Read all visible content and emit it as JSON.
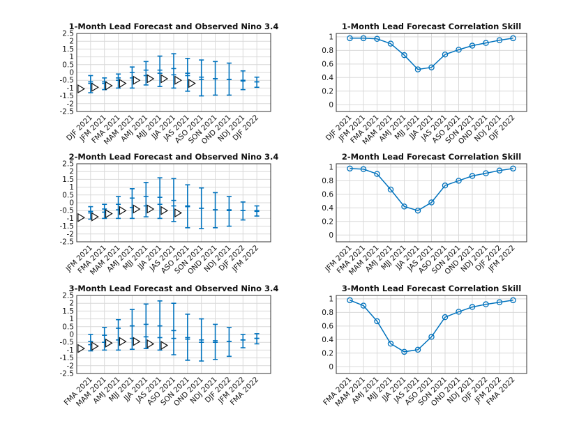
{
  "colors": {
    "line": "#0072bd",
    "obs": "#111111",
    "grid": "#d9d9d9"
  },
  "chart_data": [
    {
      "type": "errorbar",
      "title": "1-Month Lead Forecast and Observed Nino 3.4",
      "categories": [
        "DJF 2021",
        "JFM 2021",
        "FMA 2021",
        "MAM 2021",
        "AMJ 2021",
        "MJJ 2021",
        "JJA 2021",
        "JAS 2021",
        "ASO 2021",
        "SON 2021",
        "OND 2021",
        "NDJ 2021",
        "DJF 2022"
      ],
      "yticks": [
        "2.5",
        "2",
        "1.5",
        "1",
        "0.5",
        "0",
        "-0.5",
        "-1",
        "-1.5",
        "-2",
        "-2.5"
      ],
      "ylim": [
        -2.5,
        2.5
      ],
      "grid": true,
      "forecast": [
        {
          "mean": -0.7,
          "tick": -0.6,
          "low": -1.3,
          "high": -0.2
        },
        {
          "mean": -0.7,
          "tick": -0.6,
          "low": -1.1,
          "high": -0.35
        },
        {
          "mean": -0.5,
          "tick": -0.35,
          "low": -1.0,
          "high": -0.1
        },
        {
          "mean": -0.35,
          "tick": 0.0,
          "low": -1.0,
          "high": 0.35
        },
        {
          "mean": -0.2,
          "tick": 0.15,
          "low": -0.8,
          "high": 0.7
        },
        {
          "mean": -0.05,
          "tick": 0.15,
          "low": -0.9,
          "high": 1.05
        },
        {
          "mean": -0.15,
          "tick": 0.25,
          "low": -1.0,
          "high": 1.2
        },
        {
          "mean": -0.2,
          "tick": -0.05,
          "low": -1.2,
          "high": 0.9
        },
        {
          "mean": -0.3,
          "tick": -0.45,
          "low": -1.5,
          "high": 0.8
        },
        {
          "mean": -0.4,
          "tick": -0.4,
          "low": -1.45,
          "high": 0.7
        },
        {
          "mean": -0.45,
          "tick": -0.45,
          "low": -1.45,
          "high": 0.6
        },
        {
          "mean": -0.5,
          "tick": -0.55,
          "low": -1.1,
          "high": 0.1
        },
        {
          "mean": -0.6,
          "tick": -0.6,
          "low": -0.95,
          "high": -0.3
        }
      ],
      "observed": [
        -1.05,
        -0.95,
        -0.85,
        -0.7,
        -0.5,
        -0.4,
        -0.4,
        -0.5,
        -0.7,
        null,
        null,
        null,
        null
      ]
    },
    {
      "type": "line",
      "title": "1-Month Lead Forecast Correlation Skill",
      "categories": [
        "DJF 2021",
        "JFM 2021",
        "FMA 2021",
        "MAM 2021",
        "AMJ 2021",
        "MJJ 2021",
        "JJA 2021",
        "JAS 2021",
        "ASO 2021",
        "SON 2021",
        "OND 2021",
        "NDJ 2021",
        "DJF 2022"
      ],
      "yticks": [
        "1",
        "0.8",
        "0.6",
        "0.4",
        "0.2",
        "0"
      ],
      "ylim": [
        -0.1,
        1.05
      ],
      "grid": true,
      "values": [
        0.98,
        0.98,
        0.97,
        0.9,
        0.73,
        0.52,
        0.55,
        0.74,
        0.81,
        0.87,
        0.91,
        0.95,
        0.98
      ]
    },
    {
      "type": "errorbar",
      "title": "2-Month Lead Forecast and Observed Nino 3.4",
      "categories": [
        "JFM 2021",
        "FMA 2021",
        "MAM 2021",
        "AMJ 2021",
        "MJJ 2021",
        "JJA 2021",
        "JAS 2021",
        "ASO 2021",
        "SON 2021",
        "OND 2021",
        "NDJ 2021",
        "DJF 2022",
        "JFM 2022"
      ],
      "yticks": [
        "2.5",
        "2",
        "1.5",
        "1",
        "0.5",
        "0",
        "-0.5",
        "-1",
        "-1.5",
        "-2",
        "-2.5"
      ],
      "ylim": [
        -2.5,
        2.5
      ],
      "grid": true,
      "forecast": [
        {
          "mean": -0.65,
          "tick": -0.55,
          "low": -1.05,
          "high": -0.25
        },
        {
          "mean": -0.6,
          "tick": -0.4,
          "low": -1.0,
          "high": -0.1
        },
        {
          "mean": -0.45,
          "tick": -0.1,
          "low": -1.0,
          "high": 0.4
        },
        {
          "mean": -0.3,
          "tick": 0.3,
          "low": -1.0,
          "high": 0.9
        },
        {
          "mean": -0.2,
          "tick": 0.4,
          "low": -0.9,
          "high": 1.3
        },
        {
          "mean": -0.1,
          "tick": 0.35,
          "low": -1.0,
          "high": 1.6
        },
        {
          "mean": -0.2,
          "tick": 0.15,
          "low": -1.2,
          "high": 1.55
        },
        {
          "mean": -0.25,
          "tick": -0.2,
          "low": -1.6,
          "high": 1.15
        },
        {
          "mean": -0.35,
          "tick": -0.35,
          "low": -1.65,
          "high": 0.95
        },
        {
          "mean": -0.45,
          "tick": -0.45,
          "low": -1.6,
          "high": 0.65
        },
        {
          "mean": -0.45,
          "tick": -0.5,
          "low": -1.5,
          "high": 0.4
        },
        {
          "mean": -0.5,
          "tick": -0.5,
          "low": -1.1,
          "high": 0.05
        },
        {
          "mean": -0.55,
          "tick": -0.5,
          "low": -0.85,
          "high": -0.2
        }
      ],
      "observed": [
        -0.95,
        -0.9,
        -0.7,
        -0.5,
        -0.4,
        -0.4,
        -0.5,
        -0.65,
        null,
        null,
        null,
        null,
        null
      ]
    },
    {
      "type": "line",
      "title": "2-Month Lead Forecast Correlation Skill",
      "categories": [
        "JFM 2021",
        "FMA 2021",
        "MAM 2021",
        "AMJ 2021",
        "MJJ 2021",
        "JJA 2021",
        "JAS 2021",
        "ASO 2021",
        "SON 2021",
        "OND 2021",
        "NDJ 2021",
        "DJF 2022",
        "JFM 2022"
      ],
      "yticks": [
        "1",
        "0.8",
        "0.6",
        "0.4",
        "0.2",
        "0"
      ],
      "ylim": [
        -0.1,
        1.05
      ],
      "grid": true,
      "values": [
        0.98,
        0.97,
        0.9,
        0.67,
        0.42,
        0.36,
        0.48,
        0.73,
        0.8,
        0.87,
        0.91,
        0.95,
        0.98
      ]
    },
    {
      "type": "errorbar",
      "title": "3-Month Lead Forecast and Observed Nino 3.4",
      "categories": [
        "FMA 2021",
        "MAM 2021",
        "AMJ 2021",
        "MJJ 2021",
        "JJA 2021",
        "JAS 2021",
        "ASO 2021",
        "SON 2021",
        "OND 2021",
        "NDJ 2021",
        "DJF 2022",
        "JFM 2022",
        "FMA 2022"
      ],
      "yticks": [
        "2.5",
        "2",
        "1.5",
        "1",
        "0.5",
        "0",
        "-0.5",
        "-1",
        "-1.5",
        "-2",
        "-2.5"
      ],
      "ylim": [
        -2.5,
        2.5
      ],
      "grid": true,
      "forecast": [
        {
          "mean": -0.65,
          "tick": -0.45,
          "low": -1.05,
          "high": 0.0
        },
        {
          "mean": -0.5,
          "tick": -0.05,
          "low": -1.0,
          "high": 0.45
        },
        {
          "mean": -0.35,
          "tick": 0.4,
          "low": -1.0,
          "high": 0.95
        },
        {
          "mean": -0.25,
          "tick": 0.55,
          "low": -0.95,
          "high": 1.6
        },
        {
          "mean": -0.15,
          "tick": 0.65,
          "low": -0.9,
          "high": 1.95
        },
        {
          "mean": -0.2,
          "tick": 0.55,
          "low": -1.0,
          "high": 2.15
        },
        {
          "mean": -0.25,
          "tick": 0.25,
          "low": -1.3,
          "high": 2.0
        },
        {
          "mean": -0.3,
          "tick": -0.2,
          "low": -1.65,
          "high": 1.3
        },
        {
          "mean": -0.35,
          "tick": -0.5,
          "low": -1.7,
          "high": 1.0
        },
        {
          "mean": -0.4,
          "tick": -0.5,
          "low": -1.6,
          "high": 0.65
        },
        {
          "mean": -0.45,
          "tick": -0.45,
          "low": -1.4,
          "high": 0.45
        },
        {
          "mean": -0.35,
          "tick": -0.35,
          "low": -0.85,
          "high": 0.0
        },
        {
          "mean": -0.25,
          "tick": -0.25,
          "low": -0.6,
          "high": 0.05
        }
      ],
      "observed": [
        -0.9,
        -0.75,
        -0.55,
        -0.45,
        -0.45,
        -0.6,
        -0.7,
        null,
        null,
        null,
        null,
        null,
        null
      ]
    },
    {
      "type": "line",
      "title": "3-Month Lead Forecast Correlation Skill",
      "categories": [
        "FMA 2021",
        "MAM 2021",
        "AMJ 2021",
        "MJJ 2021",
        "JJA 2021",
        "JAS 2021",
        "ASO 2021",
        "SON 2021",
        "OND 2021",
        "NDJ 2021",
        "DJF 2022",
        "JFM 2022",
        "FMA 2022"
      ],
      "yticks": [
        "1",
        "0.8",
        "0.6",
        "0.4",
        "0.2",
        "0"
      ],
      "ylim": [
        -0.1,
        1.05
      ],
      "grid": true,
      "values": [
        0.98,
        0.9,
        0.67,
        0.34,
        0.22,
        0.25,
        0.44,
        0.73,
        0.81,
        0.88,
        0.92,
        0.95,
        0.98
      ]
    }
  ]
}
